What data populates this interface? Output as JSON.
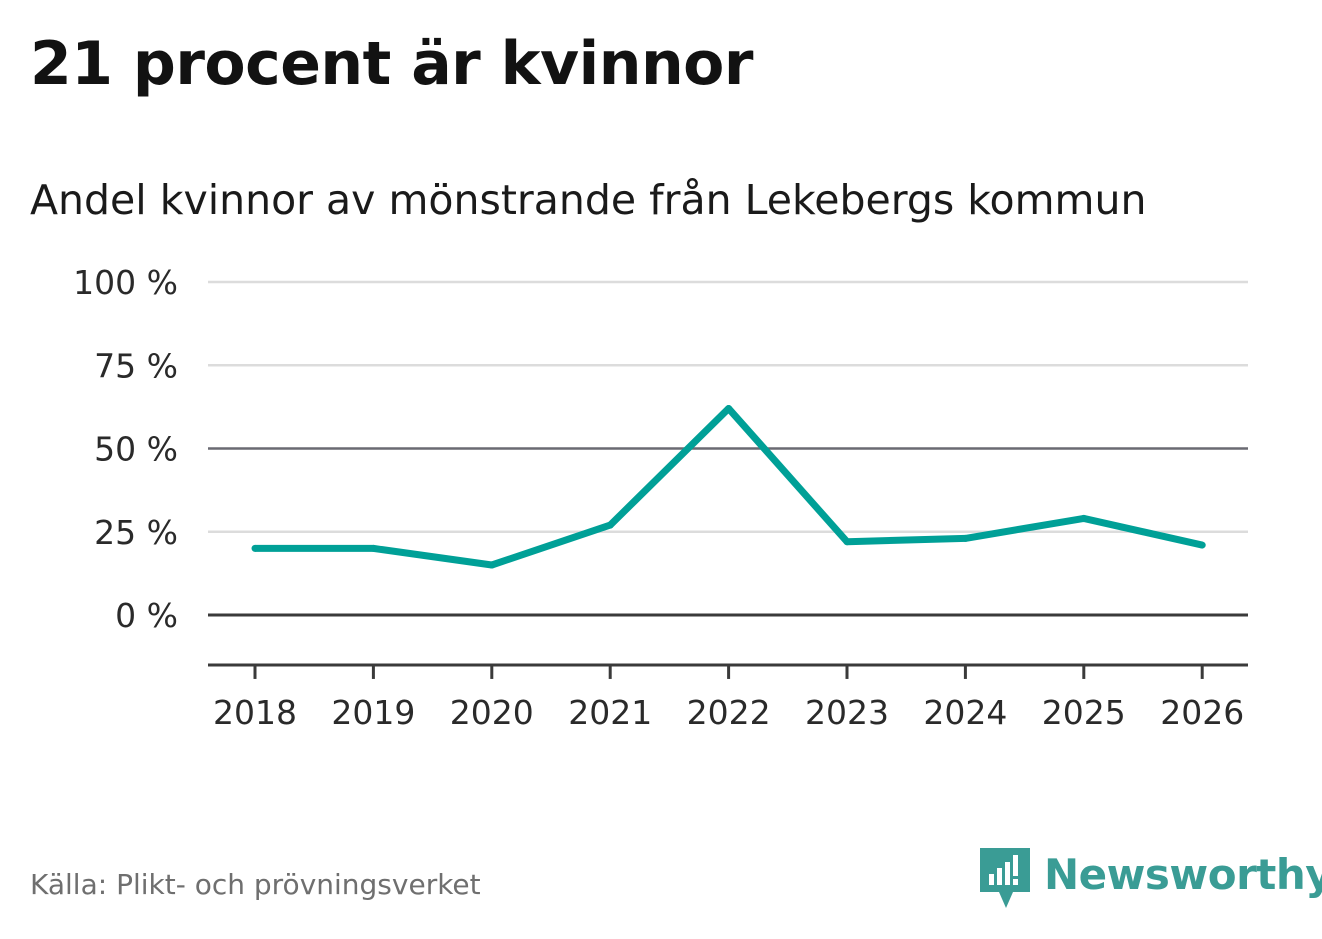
{
  "title": "21 procent är kvinnor",
  "subtitle": "Andel kvinnor av mönstrande från Lekebergs kommun",
  "source": "Källa: Plikt- och prövningsverket",
  "brand": {
    "name": "Newsworthy",
    "icon": "newsworthy-logo-icon",
    "color": "#3a9c95"
  },
  "chart_data": {
    "type": "line",
    "title": "21 procent är kvinnor",
    "subtitle": "Andel kvinnor av mönstrande från Lekebergs kommun",
    "xlabel": "",
    "ylabel": "",
    "ylim": [
      -15,
      100
    ],
    "yticks": [
      {
        "value": 100,
        "label": "100 %"
      },
      {
        "value": 75,
        "label": "75 %"
      },
      {
        "value": 50,
        "label": "50 %"
      },
      {
        "value": 25,
        "label": "25 %"
      },
      {
        "value": 0,
        "label": "0 %"
      }
    ],
    "categories": [
      "2018",
      "2019",
      "2020",
      "2021",
      "2022",
      "2023",
      "2024",
      "2025",
      "2026"
    ],
    "series": [
      {
        "name": "Andel kvinnor",
        "color": "#00a097",
        "values": [
          20,
          20,
          15,
          27,
          62,
          22,
          23,
          29,
          21
        ]
      }
    ],
    "grid": true,
    "legend": "none"
  }
}
